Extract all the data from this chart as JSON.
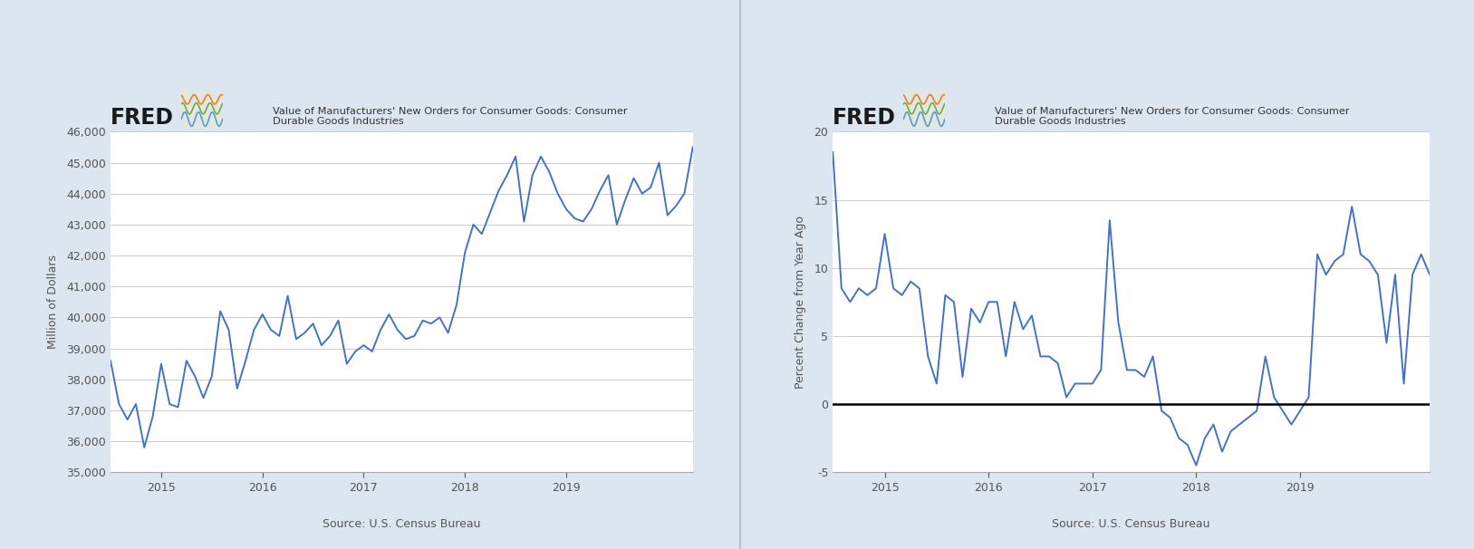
{
  "background_color": "#dce6f0",
  "plot_bg_color": "#ffffff",
  "line_color": "#4472c4",
  "zero_line_color": "#000000",
  "title1": "Value of Manufacturers' New Orders for Consumer Goods: Consumer\nDurable Goods Industries",
  "title2": "Value of Manufacturers' New Orders for Consumer Goods: Consumer\nDurable Goods Industries",
  "ylabel1": "Million of Dollars",
  "ylabel2": "Percent Change from Year Ago",
  "source": "Source: U.S. Census Bureau",
  "values1": [
    38600,
    37200,
    36700,
    37200,
    35800,
    36800,
    38500,
    37200,
    37100,
    38600,
    38100,
    37400,
    38100,
    40200,
    39600,
    37700,
    38600,
    39600,
    40100,
    39600,
    39400,
    40700,
    39300,
    39500,
    39800,
    39100,
    39400,
    39900,
    38500,
    38900,
    39100,
    38900,
    39600,
    40100,
    39600,
    39300,
    39400,
    39900,
    39800,
    40000,
    39500,
    40400,
    42100,
    43000,
    42700,
    43400,
    44100,
    44600,
    45200,
    43100,
    44600,
    45200,
    44700,
    44000,
    43500,
    43200,
    43100,
    43500,
    44100,
    44600,
    43000,
    43800,
    44500,
    44000,
    44200,
    45000,
    43300,
    43600,
    44000,
    45500
  ],
  "ylim1": [
    35000,
    46000
  ],
  "yticks1": [
    35000,
    36000,
    37000,
    38000,
    39000,
    40000,
    41000,
    42000,
    43000,
    44000,
    45000,
    46000
  ],
  "values2": [
    18.5,
    8.5,
    7.5,
    8.5,
    8.0,
    8.5,
    12.5,
    8.5,
    8.0,
    9.0,
    8.5,
    3.5,
    1.5,
    8.0,
    7.5,
    2.0,
    7.0,
    6.0,
    7.5,
    7.5,
    3.5,
    7.5,
    5.5,
    6.5,
    3.5,
    3.5,
    3.0,
    0.5,
    1.5,
    1.5,
    1.5,
    2.5,
    13.5,
    6.0,
    2.5,
    2.5,
    2.0,
    3.5,
    -0.5,
    -1.0,
    -2.5,
    -3.0,
    -4.5,
    -2.5,
    -1.5,
    -3.5,
    -2.0,
    -1.5,
    -1.0,
    -0.5,
    3.5,
    0.5,
    -0.5,
    -1.5,
    -0.5,
    0.5,
    11.0,
    9.5,
    10.5,
    11.0,
    14.5,
    11.0,
    10.5,
    9.5,
    4.5,
    9.5,
    1.5,
    9.5,
    11.0,
    9.5
  ],
  "ylim2": [
    -5,
    20
  ],
  "yticks2": [
    -5,
    0,
    5,
    10,
    15,
    20
  ],
  "xtick_year_indices": [
    6,
    18,
    30,
    42,
    54,
    66
  ],
  "xtick_year_labels": [
    "2015",
    "2016",
    "2017",
    "2018",
    "2019",
    ""
  ],
  "n_points": 70
}
